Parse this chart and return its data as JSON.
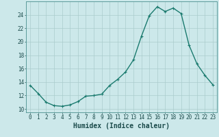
{
  "x": [
    0,
    1,
    2,
    3,
    4,
    5,
    6,
    7,
    8,
    9,
    10,
    11,
    12,
    13,
    14,
    15,
    16,
    17,
    18,
    19,
    20,
    21,
    22,
    23
  ],
  "y": [
    13.5,
    12.3,
    11.0,
    10.5,
    10.4,
    10.6,
    11.1,
    11.9,
    12.0,
    12.2,
    13.5,
    14.4,
    15.5,
    17.3,
    20.8,
    23.9,
    25.2,
    24.5,
    25.0,
    24.2,
    19.5,
    16.7,
    15.0,
    13.6
  ],
  "line_color": "#1a7a6e",
  "marker": "+",
  "marker_size": 3,
  "linewidth": 1.0,
  "bg_color": "#cce8ea",
  "grid_color": "#aacccc",
  "xlabel": "Humidex (Indice chaleur)",
  "xlim": [
    -0.5,
    23.5
  ],
  "ylim": [
    9.5,
    26.0
  ],
  "yticks": [
    10,
    12,
    14,
    16,
    18,
    20,
    22,
    24
  ],
  "xticks": [
    0,
    1,
    2,
    3,
    4,
    5,
    6,
    7,
    8,
    9,
    10,
    11,
    12,
    13,
    14,
    15,
    16,
    17,
    18,
    19,
    20,
    21,
    22,
    23
  ],
  "xlabel_fontsize": 7,
  "tick_fontsize": 5.5,
  "tick_color": "#1a4a4a",
  "spine_color": "#5a9a9a"
}
